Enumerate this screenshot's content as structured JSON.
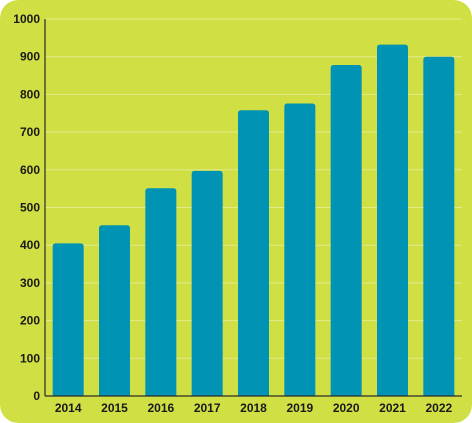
{
  "colors": {
    "background": "#cfdf44",
    "bar": "#0093b4",
    "gridline": "#e3ec8c",
    "axis": "#2a2a2a",
    "text": "#1a1a1a"
  },
  "chart_data": {
    "type": "bar",
    "title": "",
    "xlabel": "",
    "ylabel": "",
    "categories": [
      "2014",
      "2015",
      "2016",
      "2017",
      "2018",
      "2019",
      "2020",
      "2021",
      "2022"
    ],
    "values": [
      405,
      453,
      551,
      597,
      758,
      776,
      878,
      932,
      900
    ],
    "ylim": [
      0,
      1000
    ],
    "yticks": [
      0,
      100,
      200,
      300,
      400,
      500,
      600,
      700,
      800,
      900,
      1000
    ],
    "grid": true,
    "legend": "none"
  }
}
